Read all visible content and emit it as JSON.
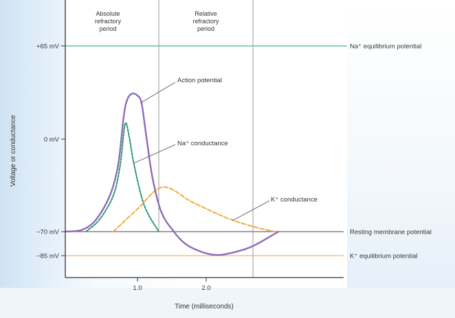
{
  "chart_data": {
    "type": "line",
    "title": "",
    "xlabel": "Time (milliseconds)",
    "ylabel": "Voltage or conductance",
    "x_ticks": [
      {
        "value": 1.0,
        "label": "1.0"
      },
      {
        "value": 2.0,
        "label": "2.0"
      }
    ],
    "y_ticks": [
      {
        "value": 65,
        "label": "+65 mV"
      },
      {
        "value": 0,
        "label": "0 mV"
      },
      {
        "value": -70,
        "label": "−70 mV"
      },
      {
        "value": -85,
        "label": "−85 mV"
      }
    ],
    "periods": [
      {
        "label_lines": [
          "Absolute",
          "refractory",
          "period"
        ],
        "end": 1.31
      },
      {
        "label_lines": [
          "Relative",
          "refractory",
          "period"
        ],
        "end": 2.68
      }
    ],
    "reference_lines": [
      {
        "value": 65,
        "label": "Na⁺ equilibrium potential",
        "color": "#3cb68a"
      },
      {
        "value": -70,
        "label": "Resting membrane potential",
        "color": "#666666"
      },
      {
        "value": -85,
        "label": "K⁺ equilibrium potential",
        "color": "#f5b657"
      }
    ],
    "series": [
      {
        "name": "Action potential",
        "color": "#8c6bb8",
        "style": "solid",
        "points": [
          [
            -0.05,
            -70
          ],
          [
            0.2,
            -68.5
          ],
          [
            0.4,
            -60.7
          ],
          [
            0.6,
            -42.5
          ],
          [
            0.72,
            -19.2
          ],
          [
            0.8,
            15.8
          ],
          [
            0.85,
            27.4
          ],
          [
            0.92,
            31.7
          ],
          [
            1.0,
            30.3
          ],
          [
            1.06,
            25
          ],
          [
            1.13,
            1.6
          ],
          [
            1.22,
            -29.6
          ],
          [
            1.35,
            -55.5
          ],
          [
            1.53,
            -70
          ],
          [
            1.7,
            -77.7
          ],
          [
            1.95,
            -82.9
          ],
          [
            2.18,
            -84.6
          ],
          [
            2.45,
            -82.4
          ],
          [
            2.7,
            -78.6
          ],
          [
            3.05,
            -70
          ]
        ]
      },
      {
        "name": "Na⁺ conductance",
        "color": "#2a9a6e",
        "style": "dashed",
        "points": [
          [
            0.25,
            -70
          ],
          [
            0.45,
            -60.7
          ],
          [
            0.65,
            -42.5
          ],
          [
            0.75,
            -19.2
          ],
          [
            0.82,
            10.5
          ],
          [
            0.88,
            1.6
          ],
          [
            0.95,
            -19.2
          ],
          [
            1.1,
            -50.3
          ],
          [
            1.31,
            -70
          ]
        ]
      },
      {
        "name": "K⁺ conductance",
        "color": "#f5a93a",
        "style": "dashed",
        "points": [
          [
            0.65,
            -70
          ],
          [
            1.0,
            -52.9
          ],
          [
            1.37,
            -36.3
          ],
          [
            1.8,
            -47.7
          ],
          [
            2.3,
            -59.6
          ],
          [
            2.7,
            -66.4
          ],
          [
            3.0,
            -70
          ]
        ]
      }
    ],
    "xlim": [
      -0.05,
      4.0
    ],
    "grid": false,
    "legend": "none"
  }
}
